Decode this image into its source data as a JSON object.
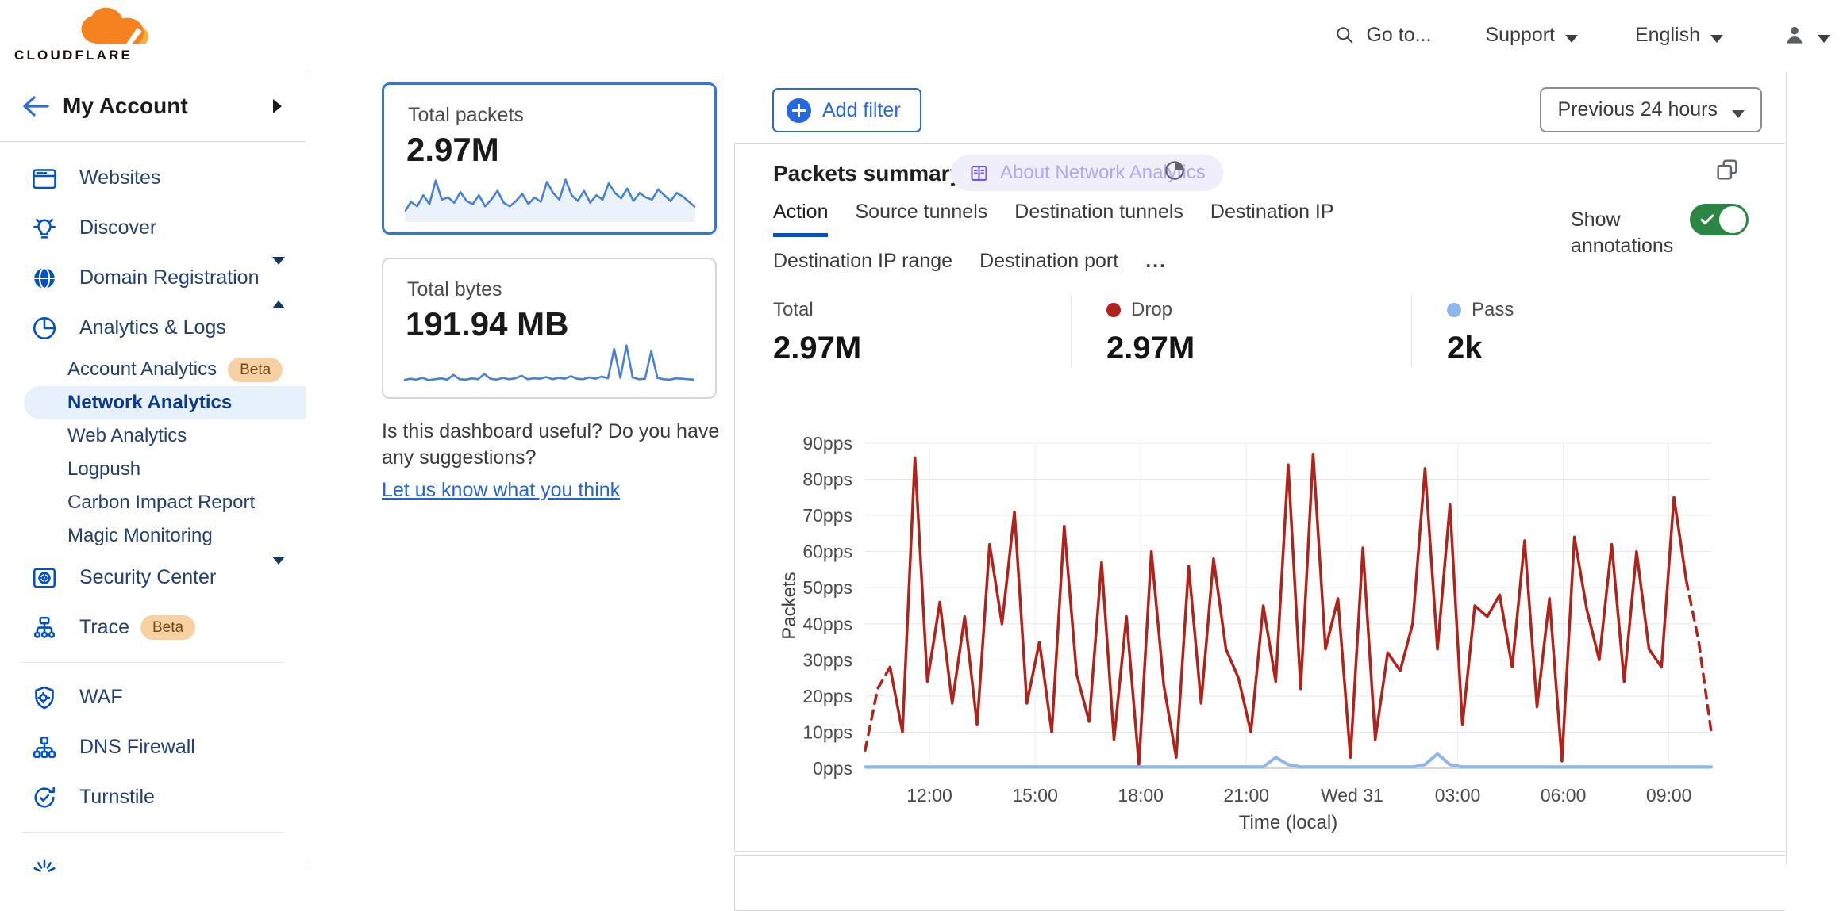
{
  "header": {
    "logo_text": "CLOUDFLARE",
    "goto": "Go to...",
    "support": "Support",
    "language": "English",
    "search_icon": "search-icon",
    "user_icon": "person-icon"
  },
  "sidebar": {
    "back_label": "My Account",
    "back_icon": "back-arrow-icon",
    "groups": [
      {
        "items": [
          {
            "label": "Websites",
            "icon": "browser-icon"
          },
          {
            "label": "Discover",
            "icon": "lightbulb-icon"
          },
          {
            "label": "Domain Registration",
            "icon": "globe-icon",
            "caret": "down"
          },
          {
            "label": "Analytics & Logs",
            "icon": "pie-chart-icon",
            "caret": "up",
            "children": [
              {
                "label": "Account Analytics",
                "badge": "Beta"
              },
              {
                "label": "Network Analytics",
                "selected": true
              },
              {
                "label": "Web Analytics"
              },
              {
                "label": "Logpush"
              },
              {
                "label": "Carbon Impact Report"
              },
              {
                "label": "Magic Monitoring"
              }
            ]
          },
          {
            "label": "Security Center",
            "icon": "safe-icon",
            "caret": "down"
          },
          {
            "label": "Trace",
            "icon": "trace-icon",
            "badge": "Beta"
          }
        ]
      },
      {
        "items": [
          {
            "label": "WAF",
            "icon": "shield-gear-icon"
          },
          {
            "label": "DNS Firewall",
            "icon": "dns-tree-icon"
          },
          {
            "label": "Turnstile",
            "icon": "turnstile-icon"
          }
        ]
      },
      {
        "items": [
          {
            "label": "",
            "icon": "zero-trust-icon",
            "partial": true
          }
        ]
      }
    ]
  },
  "summary_cards": [
    {
      "label": "Total packets",
      "value": "2.97M",
      "selected": true,
      "fill": true,
      "spark": [
        18,
        40,
        30,
        55,
        35,
        88,
        45,
        50,
        38,
        62,
        42,
        35,
        55,
        30,
        45,
        65,
        38,
        30,
        42,
        58,
        35,
        50,
        40,
        85,
        60,
        45,
        90,
        55,
        42,
        65,
        38,
        55,
        45,
        82,
        60,
        48,
        70,
        42,
        60,
        50,
        45,
        68,
        55,
        42,
        60,
        52,
        40,
        28
      ]
    },
    {
      "label": "Total bytes",
      "value": "191.94 MB",
      "selected": false,
      "fill": false,
      "spark": [
        10,
        13,
        11,
        15,
        10,
        12,
        14,
        11,
        22,
        12,
        11,
        14,
        12,
        24,
        13,
        11,
        15,
        12,
        14,
        20,
        12,
        14,
        13,
        17,
        12,
        15,
        13,
        19,
        13,
        12,
        16,
        13,
        18,
        14,
        80,
        15,
        88,
        16,
        12,
        13,
        75,
        15,
        12,
        11,
        14,
        13,
        12,
        11
      ]
    }
  ],
  "feedback": {
    "question": "Is this dashboard useful? Do you have any suggestions?",
    "link": "Let us know what you think"
  },
  "toolbar": {
    "add_filter": "Add filter",
    "add_filter_icon": "plus-circle-icon",
    "time_range": "Previous 24 hours"
  },
  "panel": {
    "title": "Packets summary",
    "about_badge": "About Network Analytics",
    "about_icon": "book-icon",
    "annotation_icon": "pie-time-icon",
    "expand_icon": "expand-windows-icon",
    "tabs": [
      {
        "label": "Action",
        "active": true
      },
      {
        "label": "Source tunnels"
      },
      {
        "label": "Destination tunnels"
      },
      {
        "label": "Destination IP"
      },
      {
        "label": "Destination IP range"
      },
      {
        "label": "Destination port"
      },
      {
        "label": "...",
        "more": true
      }
    ],
    "show_annotations": "Show annotations",
    "toggle_state": "on",
    "stats": [
      {
        "label": "Total",
        "value": "2.97M",
        "dot": null
      },
      {
        "label": "Drop",
        "value": "2.97M",
        "dot": "#b0231a"
      },
      {
        "label": "Pass",
        "value": "2k",
        "dot": "#8cb7ed"
      }
    ]
  },
  "chart_data": {
    "type": "line",
    "title": "Packets summary",
    "xlabel": "Time (local)",
    "ylabel": "Packets",
    "x_ticks": [
      "12:00",
      "15:00",
      "18:00",
      "21:00",
      "Wed 31",
      "03:00",
      "06:00",
      "09:00"
    ],
    "y_ticks": [
      "0pps",
      "10pps",
      "20pps",
      "30pps",
      "40pps",
      "50pps",
      "60pps",
      "70pps",
      "80pps",
      "90pps"
    ],
    "ylim": [
      0,
      90
    ],
    "grid": true,
    "legend_position": "none",
    "series": [
      {
        "name": "Drop",
        "color": "#b0231a",
        "width": 3.5,
        "dash_head": true,
        "dash_tail": true,
        "values": [
          5,
          22,
          28,
          10,
          86,
          24,
          46,
          18,
          42,
          12,
          62,
          40,
          71,
          18,
          35,
          10,
          67,
          26,
          13,
          57,
          8,
          42,
          1,
          60,
          23,
          3,
          56,
          18,
          58,
          33,
          25,
          10,
          45,
          24,
          84,
          22,
          87,
          33,
          47,
          3,
          61,
          8,
          32,
          27,
          40,
          83,
          33,
          73,
          12,
          45,
          42,
          48,
          28,
          63,
          17,
          47,
          2,
          64,
          44,
          30,
          62,
          24,
          60,
          33,
          28,
          75,
          52,
          35,
          10
        ]
      },
      {
        "name": "Pass",
        "color": "#8cb7ed",
        "width": 4,
        "dash_head": false,
        "dash_tail": false,
        "values": [
          0.4,
          0.4,
          0.4,
          0.4,
          0.4,
          0.4,
          0.4,
          0.4,
          0.4,
          0.4,
          0.4,
          0.4,
          0.4,
          0.4,
          0.4,
          0.4,
          0.4,
          0.4,
          0.4,
          0.4,
          0.4,
          0.4,
          0.4,
          0.4,
          0.4,
          0.4,
          0.4,
          0.4,
          0.4,
          0.4,
          0.4,
          0.4,
          0.4,
          3,
          1,
          0.4,
          0.4,
          0.4,
          0.4,
          0.4,
          0.4,
          0.4,
          0.4,
          0.4,
          0.4,
          1,
          4,
          1,
          0.4,
          0.4,
          0.4,
          0.4,
          0.4,
          0.4,
          0.4,
          0.4,
          0.4,
          0.4,
          0.4,
          0.4,
          0.4,
          0.4,
          0.4,
          0.4,
          0.4,
          0.4,
          0.4,
          0.4,
          0.4
        ]
      }
    ]
  },
  "colors": {
    "brand_orange": "#F6821F",
    "brand_orange_light": "#FBAD41",
    "sidebar_icon_blue": "#0051c3",
    "link_blue": "#2264d1",
    "active_card_border": "#2f76d9",
    "active_tab_underline": "#0051c3",
    "toggle_green": "#2b8643",
    "drop_red": "#b0231a",
    "pass_blue": "#8cb7ed",
    "beta_badge_bg": "#f8d1a3",
    "selected_item_bg": "#e7f1fb",
    "panel_border": "#d6d6d6"
  }
}
